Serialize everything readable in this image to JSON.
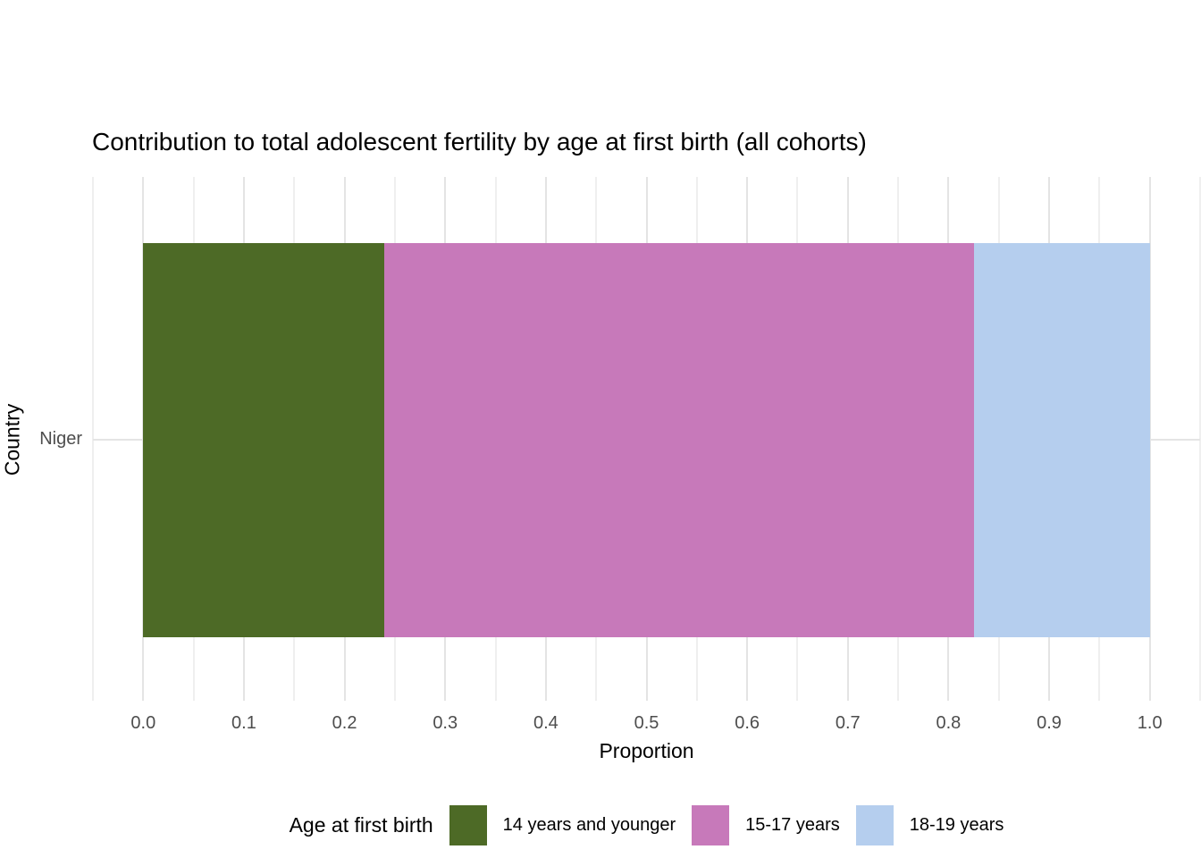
{
  "title": "Contribution to total adolescent fertility by age at first birth (all cohorts)",
  "axes": {
    "x_title": "Proportion",
    "y_title": "Country",
    "y_tick_label": "Niger"
  },
  "legend": {
    "title": "Age at first birth",
    "items": [
      {
        "label": "14 years and younger",
        "color": "#4d6a26"
      },
      {
        "label": "15-17 years",
        "color": "#c779ba"
      },
      {
        "label": "18-19 years",
        "color": "#b5ceee"
      }
    ]
  },
  "colors": {
    "background": "#ffffff",
    "grid_major": "#e4e4e4",
    "grid_minor": "#efefef",
    "axis_text": "#4d4d4d",
    "text": "#000000"
  },
  "chart_data": {
    "type": "bar",
    "orientation": "horizontal",
    "stacked": true,
    "title": "Contribution to total adolescent fertility by age at first birth (all cohorts)",
    "xlabel": "Proportion",
    "ylabel": "Country",
    "categories": [
      "Niger"
    ],
    "series": [
      {
        "name": "14 years and younger",
        "values": [
          0.239
        ],
        "color": "#4d6a26"
      },
      {
        "name": "15-17 years",
        "values": [
          0.586
        ],
        "color": "#c779ba"
      },
      {
        "name": "18-19 years",
        "values": [
          0.175
        ],
        "color": "#b5ceee"
      }
    ],
    "xlim": [
      -0.05,
      1.05
    ],
    "x_major_ticks": [
      0.0,
      0.1,
      0.2,
      0.3,
      0.4,
      0.5,
      0.6,
      0.7,
      0.8,
      0.9,
      1.0
    ],
    "x_minor_step": 0.05,
    "grid": true,
    "legend_position": "bottom",
    "legend_title": "Age at first birth"
  }
}
